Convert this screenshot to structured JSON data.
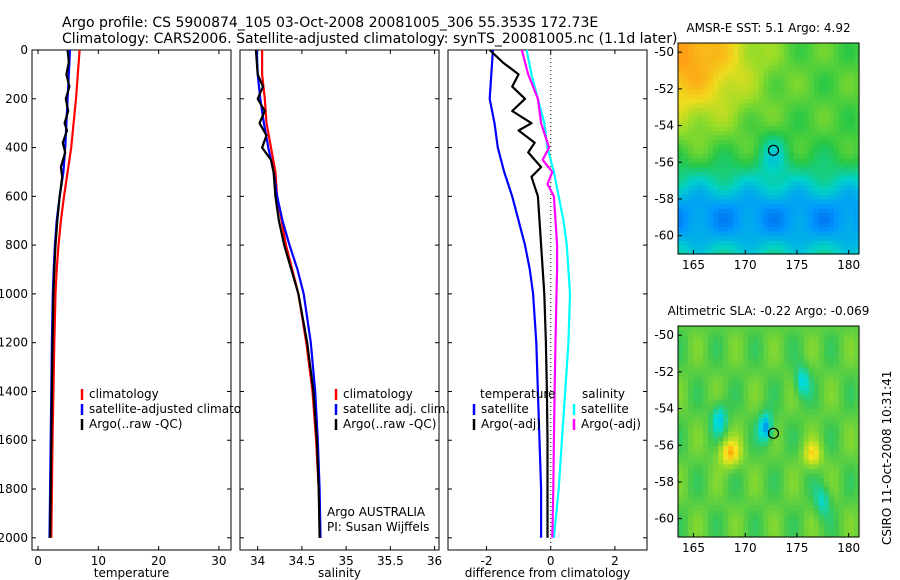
{
  "header": {
    "line1": "Argo profile: CS 5900874_105 03-Oct-2008 20081005_306 55.353S 172.73E",
    "line2": "Climatology: CARS2006. Satellite-adjusted climatology: synTS_20081005.nc (1.1d later)"
  },
  "side_label": "CSIRO 11-Oct-2008 10:31:41",
  "colors": {
    "climatology": "#ff0000",
    "satellite": "#0000ff",
    "argo": "#000000",
    "satellite_diff_salinity": "#00ffff",
    "argo_diff_salinity": "#ff00ff",
    "zero_line": "#000000"
  },
  "chart_data": [
    {
      "type": "line",
      "xlabel": "temperature",
      "ylabel": "",
      "xlim": [
        -1,
        32
      ],
      "ylim": [
        2050,
        0
      ],
      "y_reversed": true,
      "xticks": [
        0,
        10,
        20,
        30
      ],
      "yticks": [
        0,
        200,
        400,
        600,
        800,
        1000,
        1200,
        1400,
        1600,
        1800,
        2000
      ],
      "legend": [
        "climatology",
        "satellite-adjusted climatology",
        "Argo(..raw -QC)"
      ],
      "legend_colors": [
        "#ff0000",
        "#0000ff",
        "#000000"
      ],
      "series": [
        {
          "name": "climatology",
          "color": "#ff0000",
          "points": [
            [
              6.9,
              0
            ],
            [
              6.6,
              100
            ],
            [
              6.3,
              200
            ],
            [
              5.9,
              300
            ],
            [
              5.5,
              400
            ],
            [
              4.9,
              500
            ],
            [
              4.3,
              600
            ],
            [
              3.8,
              700
            ],
            [
              3.4,
              800
            ],
            [
              3.1,
              900
            ],
            [
              2.9,
              1000
            ],
            [
              2.7,
              1200
            ],
            [
              2.55,
              1400
            ],
            [
              2.4,
              1600
            ],
            [
              2.3,
              1800
            ],
            [
              2.2,
              2000
            ]
          ]
        },
        {
          "name": "satellite-adjusted climatology",
          "color": "#0000ff",
          "points": [
            [
              5.3,
              0
            ],
            [
              5.1,
              100
            ],
            [
              4.9,
              200
            ],
            [
              4.7,
              300
            ],
            [
              4.5,
              400
            ],
            [
              4.2,
              500
            ],
            [
              3.6,
              600
            ],
            [
              3.1,
              700
            ],
            [
              2.8,
              800
            ],
            [
              2.6,
              900
            ],
            [
              2.45,
              1000
            ],
            [
              2.3,
              1200
            ],
            [
              2.2,
              1400
            ],
            [
              2.1,
              1600
            ],
            [
              2.0,
              1800
            ],
            [
              1.9,
              2000
            ]
          ]
        },
        {
          "name": "Argo(..raw -QC)",
          "color": "#000000",
          "points": [
            [
              4.9,
              0
            ],
            [
              5.1,
              50
            ],
            [
              4.7,
              100
            ],
            [
              5.2,
              150
            ],
            [
              4.6,
              200
            ],
            [
              5.0,
              250
            ],
            [
              4.4,
              300
            ],
            [
              4.8,
              330
            ],
            [
              4.1,
              380
            ],
            [
              4.5,
              420
            ],
            [
              3.8,
              480
            ],
            [
              4.0,
              520
            ],
            [
              3.6,
              600
            ],
            [
              3.2,
              700
            ],
            [
              2.9,
              800
            ],
            [
              2.7,
              900
            ],
            [
              2.55,
              1000
            ],
            [
              2.4,
              1200
            ],
            [
              2.3,
              1400
            ],
            [
              2.2,
              1600
            ],
            [
              2.1,
              1800
            ],
            [
              2.0,
              2000
            ]
          ]
        }
      ],
      "annotations": []
    },
    {
      "type": "line",
      "xlabel": "salinity",
      "ylabel": "",
      "xlim": [
        33.8,
        36.05
      ],
      "ylim": [
        2050,
        0
      ],
      "y_reversed": true,
      "xticks": [
        34,
        34.5,
        35,
        35.5,
        36
      ],
      "xtick_labels": [
        "34",
        "34.5",
        "35",
        "35.5",
        "36"
      ],
      "legend": [
        "climatology",
        "satellite adj. clim.",
        "Argo(..raw -QC)"
      ],
      "legend_colors": [
        "#ff0000",
        "#0000ff",
        "#000000"
      ],
      "series": [
        {
          "name": "climatology",
          "color": "#ff0000",
          "points": [
            [
              34.05,
              0
            ],
            [
              34.05,
              100
            ],
            [
              34.08,
              200
            ],
            [
              34.1,
              300
            ],
            [
              34.15,
              400
            ],
            [
              34.2,
              500
            ],
            [
              34.22,
              600
            ],
            [
              34.27,
              700
            ],
            [
              34.32,
              800
            ],
            [
              34.39,
              900
            ],
            [
              34.46,
              1000
            ],
            [
              34.55,
              1200
            ],
            [
              34.62,
              1400
            ],
            [
              34.66,
              1600
            ],
            [
              34.69,
              1800
            ],
            [
              34.71,
              2000
            ]
          ]
        },
        {
          "name": "satellite adj. clim.",
          "color": "#0000ff",
          "points": [
            [
              33.99,
              0
            ],
            [
              34.0,
              100
            ],
            [
              34.03,
              200
            ],
            [
              34.07,
              300
            ],
            [
              34.12,
              400
            ],
            [
              34.18,
              500
            ],
            [
              34.22,
              600
            ],
            [
              34.28,
              700
            ],
            [
              34.36,
              800
            ],
            [
              34.45,
              900
            ],
            [
              34.52,
              1000
            ],
            [
              34.6,
              1200
            ],
            [
              34.65,
              1400
            ],
            [
              34.68,
              1600
            ],
            [
              34.7,
              1800
            ],
            [
              34.71,
              2000
            ]
          ]
        },
        {
          "name": "Argo(..raw -QC)",
          "color": "#000000",
          "points": [
            [
              33.98,
              0
            ],
            [
              33.99,
              50
            ],
            [
              34.0,
              100
            ],
            [
              34.06,
              150
            ],
            [
              34.0,
              200
            ],
            [
              34.08,
              250
            ],
            [
              34.02,
              300
            ],
            [
              34.1,
              350
            ],
            [
              34.05,
              400
            ],
            [
              34.15,
              450
            ],
            [
              34.18,
              500
            ],
            [
              34.2,
              600
            ],
            [
              34.24,
              700
            ],
            [
              34.3,
              800
            ],
            [
              34.38,
              900
            ],
            [
              34.46,
              1000
            ],
            [
              34.56,
              1200
            ],
            [
              34.63,
              1400
            ],
            [
              34.67,
              1600
            ],
            [
              34.69,
              1800
            ],
            [
              34.7,
              2000
            ]
          ]
        }
      ],
      "annotations": [
        "Argo AUSTRALIA",
        "PI: Susan Wijffels"
      ]
    },
    {
      "type": "line",
      "xlabel": "difference from climatology",
      "ylabel": "",
      "xlim": [
        -3.2,
        3.0
      ],
      "ylim": [
        2050,
        0
      ],
      "y_reversed": true,
      "xticks": [
        -2,
        0,
        2
      ],
      "zero_line": true,
      "legend_temperature_title": "temperature",
      "legend_salinity_title": "salinity",
      "legend": [
        "satellite",
        "Argo(-adj)",
        "satellite",
        "Argo(-adj)"
      ],
      "legend_colors": [
        "#0000ff",
        "#000000",
        "#00ffff",
        "#ff00ff"
      ],
      "series": [
        {
          "name": "satellite",
          "group": "temperature",
          "color": "#0000ff",
          "points": [
            [
              -1.8,
              0
            ],
            [
              -1.85,
              100
            ],
            [
              -1.9,
              200
            ],
            [
              -1.75,
              300
            ],
            [
              -1.65,
              400
            ],
            [
              -1.45,
              500
            ],
            [
              -1.2,
              600
            ],
            [
              -1.0,
              700
            ],
            [
              -0.8,
              800
            ],
            [
              -0.65,
              900
            ],
            [
              -0.55,
              1000
            ],
            [
              -0.45,
              1200
            ],
            [
              -0.4,
              1400
            ],
            [
              -0.35,
              1600
            ],
            [
              -0.3,
              1800
            ],
            [
              -0.3,
              2000
            ]
          ]
        },
        {
          "name": "Argo(-adj)",
          "group": "temperature",
          "color": "#000000",
          "points": [
            [
              -1.9,
              0
            ],
            [
              -1.5,
              50
            ],
            [
              -1.0,
              100
            ],
            [
              -1.2,
              150
            ],
            [
              -0.8,
              200
            ],
            [
              -1.2,
              250
            ],
            [
              -0.6,
              300
            ],
            [
              -1.0,
              330
            ],
            [
              -0.5,
              380
            ],
            [
              -0.7,
              420
            ],
            [
              -0.3,
              480
            ],
            [
              -0.6,
              520
            ],
            [
              -0.4,
              600
            ],
            [
              -0.35,
              700
            ],
            [
              -0.3,
              800
            ],
            [
              -0.25,
              900
            ],
            [
              -0.2,
              1000
            ],
            [
              -0.15,
              1200
            ],
            [
              -0.12,
              1400
            ],
            [
              -0.1,
              1600
            ],
            [
              -0.1,
              1800
            ],
            [
              -0.1,
              2000
            ]
          ]
        },
        {
          "name": "satellite",
          "group": "salinity",
          "color": "#00ffff",
          "points": [
            [
              -0.75,
              0
            ],
            [
              -0.6,
              100
            ],
            [
              -0.4,
              200
            ],
            [
              -0.2,
              300
            ],
            [
              -0.1,
              400
            ],
            [
              0.1,
              500
            ],
            [
              0.25,
              600
            ],
            [
              0.4,
              700
            ],
            [
              0.5,
              800
            ],
            [
              0.55,
              900
            ],
            [
              0.6,
              1000
            ],
            [
              0.55,
              1200
            ],
            [
              0.45,
              1400
            ],
            [
              0.35,
              1600
            ],
            [
              0.25,
              1800
            ],
            [
              0.1,
              2000
            ]
          ]
        },
        {
          "name": "Argo(-adj)",
          "group": "salinity",
          "color": "#ff00ff",
          "points": [
            [
              -0.9,
              0
            ],
            [
              -0.7,
              100
            ],
            [
              -0.4,
              200
            ],
            [
              -0.3,
              300
            ],
            [
              -0.05,
              400
            ],
            [
              -0.25,
              450
            ],
            [
              0.05,
              500
            ],
            [
              -0.1,
              550
            ],
            [
              0.1,
              600
            ],
            [
              0.15,
              700
            ],
            [
              0.2,
              800
            ],
            [
              0.2,
              900
            ],
            [
              0.18,
              1000
            ],
            [
              0.15,
              1200
            ],
            [
              0.12,
              1400
            ],
            [
              0.1,
              1600
            ],
            [
              0.08,
              1800
            ],
            [
              0.05,
              2000
            ]
          ]
        }
      ],
      "annotations": []
    },
    {
      "type": "heatmap",
      "title": "AMSR-E SST: 5.1  Argo: 4.92",
      "xlim": [
        163.5,
        181
      ],
      "ylim": [
        -61,
        -49.5
      ],
      "xticks": [
        165,
        170,
        175,
        180
      ],
      "yticks": [
        -50,
        -52,
        -54,
        -56,
        -58,
        -60
      ],
      "marker": {
        "lon": 172.73,
        "lat": -55.35
      },
      "field_description": "warm (orange) north-west, green centre, blue cold south"
    },
    {
      "type": "heatmap",
      "title": "Altimetric SLA: -0.22  Argo: -0.069",
      "xlim": [
        163.5,
        181
      ],
      "ylim": [
        -61,
        -49.5
      ],
      "xticks": [
        165,
        170,
        175,
        180
      ],
      "yticks": [
        -50,
        -52,
        -54,
        -56,
        -58,
        -60
      ],
      "marker": {
        "lon": 172.73,
        "lat": -55.35
      },
      "field_description": "mostly green/yellow with red and blue eddies"
    }
  ]
}
